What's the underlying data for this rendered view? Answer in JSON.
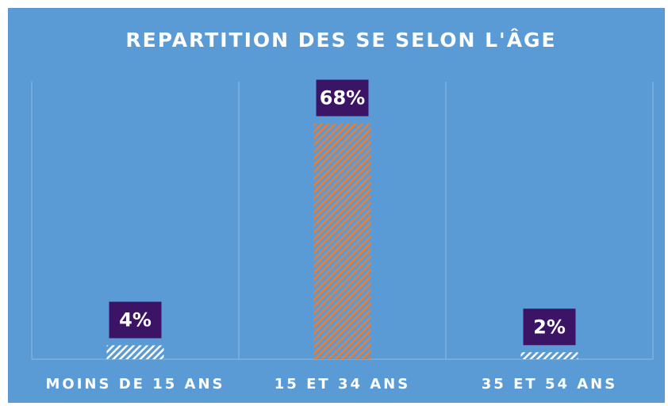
{
  "chart_data": {
    "type": "bar",
    "title": "REPARTITION DES SE SELON L'ÂGE",
    "categories": [
      "MOINS DE 15 ANS",
      "15 ET 34 ANS",
      "35 ET 54 ANS"
    ],
    "values": [
      4,
      68,
      2
    ],
    "value_labels": [
      "4%",
      "68%",
      "2%"
    ],
    "colors": [
      "#ffffff",
      "#ed7d31",
      "#ffffff"
    ],
    "ylim": [
      0,
      80
    ]
  }
}
